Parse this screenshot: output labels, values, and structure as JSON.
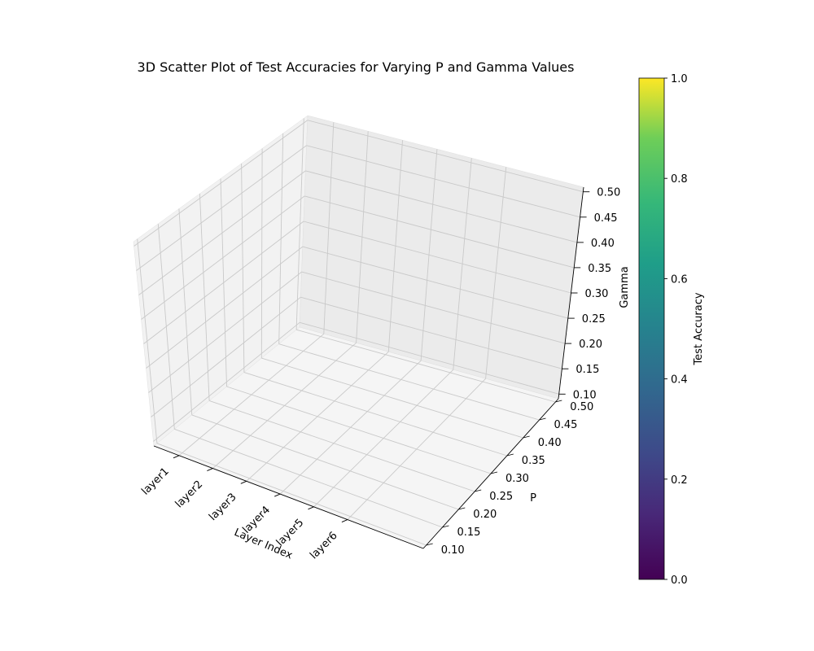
{
  "chart_data": {
    "type": "scatter",
    "projection": "3d",
    "title": "3D Scatter Plot of Test Accuracies for Varying P and Gamma Values",
    "xlabel": "Layer Index",
    "ylabel": "P",
    "zlabel": "Gamma",
    "x_categories": [
      "layer1",
      "layer2",
      "layer3",
      "layer4",
      "layer5",
      "layer6"
    ],
    "y_ticks": [
      "0.10",
      "0.15",
      "0.20",
      "0.25",
      "0.30",
      "0.35",
      "0.40",
      "0.45",
      "0.50"
    ],
    "z_ticks": [
      "0.10",
      "0.15",
      "0.20",
      "0.25",
      "0.30",
      "0.35",
      "0.40",
      "0.45",
      "0.50"
    ],
    "ylim": [
      0.1,
      0.5
    ],
    "zlim": [
      0.1,
      0.5
    ],
    "grid": true,
    "points": [],
    "colorbar": {
      "label": "Test Accuracy",
      "cmap": "viridis",
      "range": [
        0,
        1
      ],
      "ticks": [
        "0.0",
        "0.2",
        "0.4",
        "0.6",
        "0.8",
        "1.0"
      ]
    }
  }
}
